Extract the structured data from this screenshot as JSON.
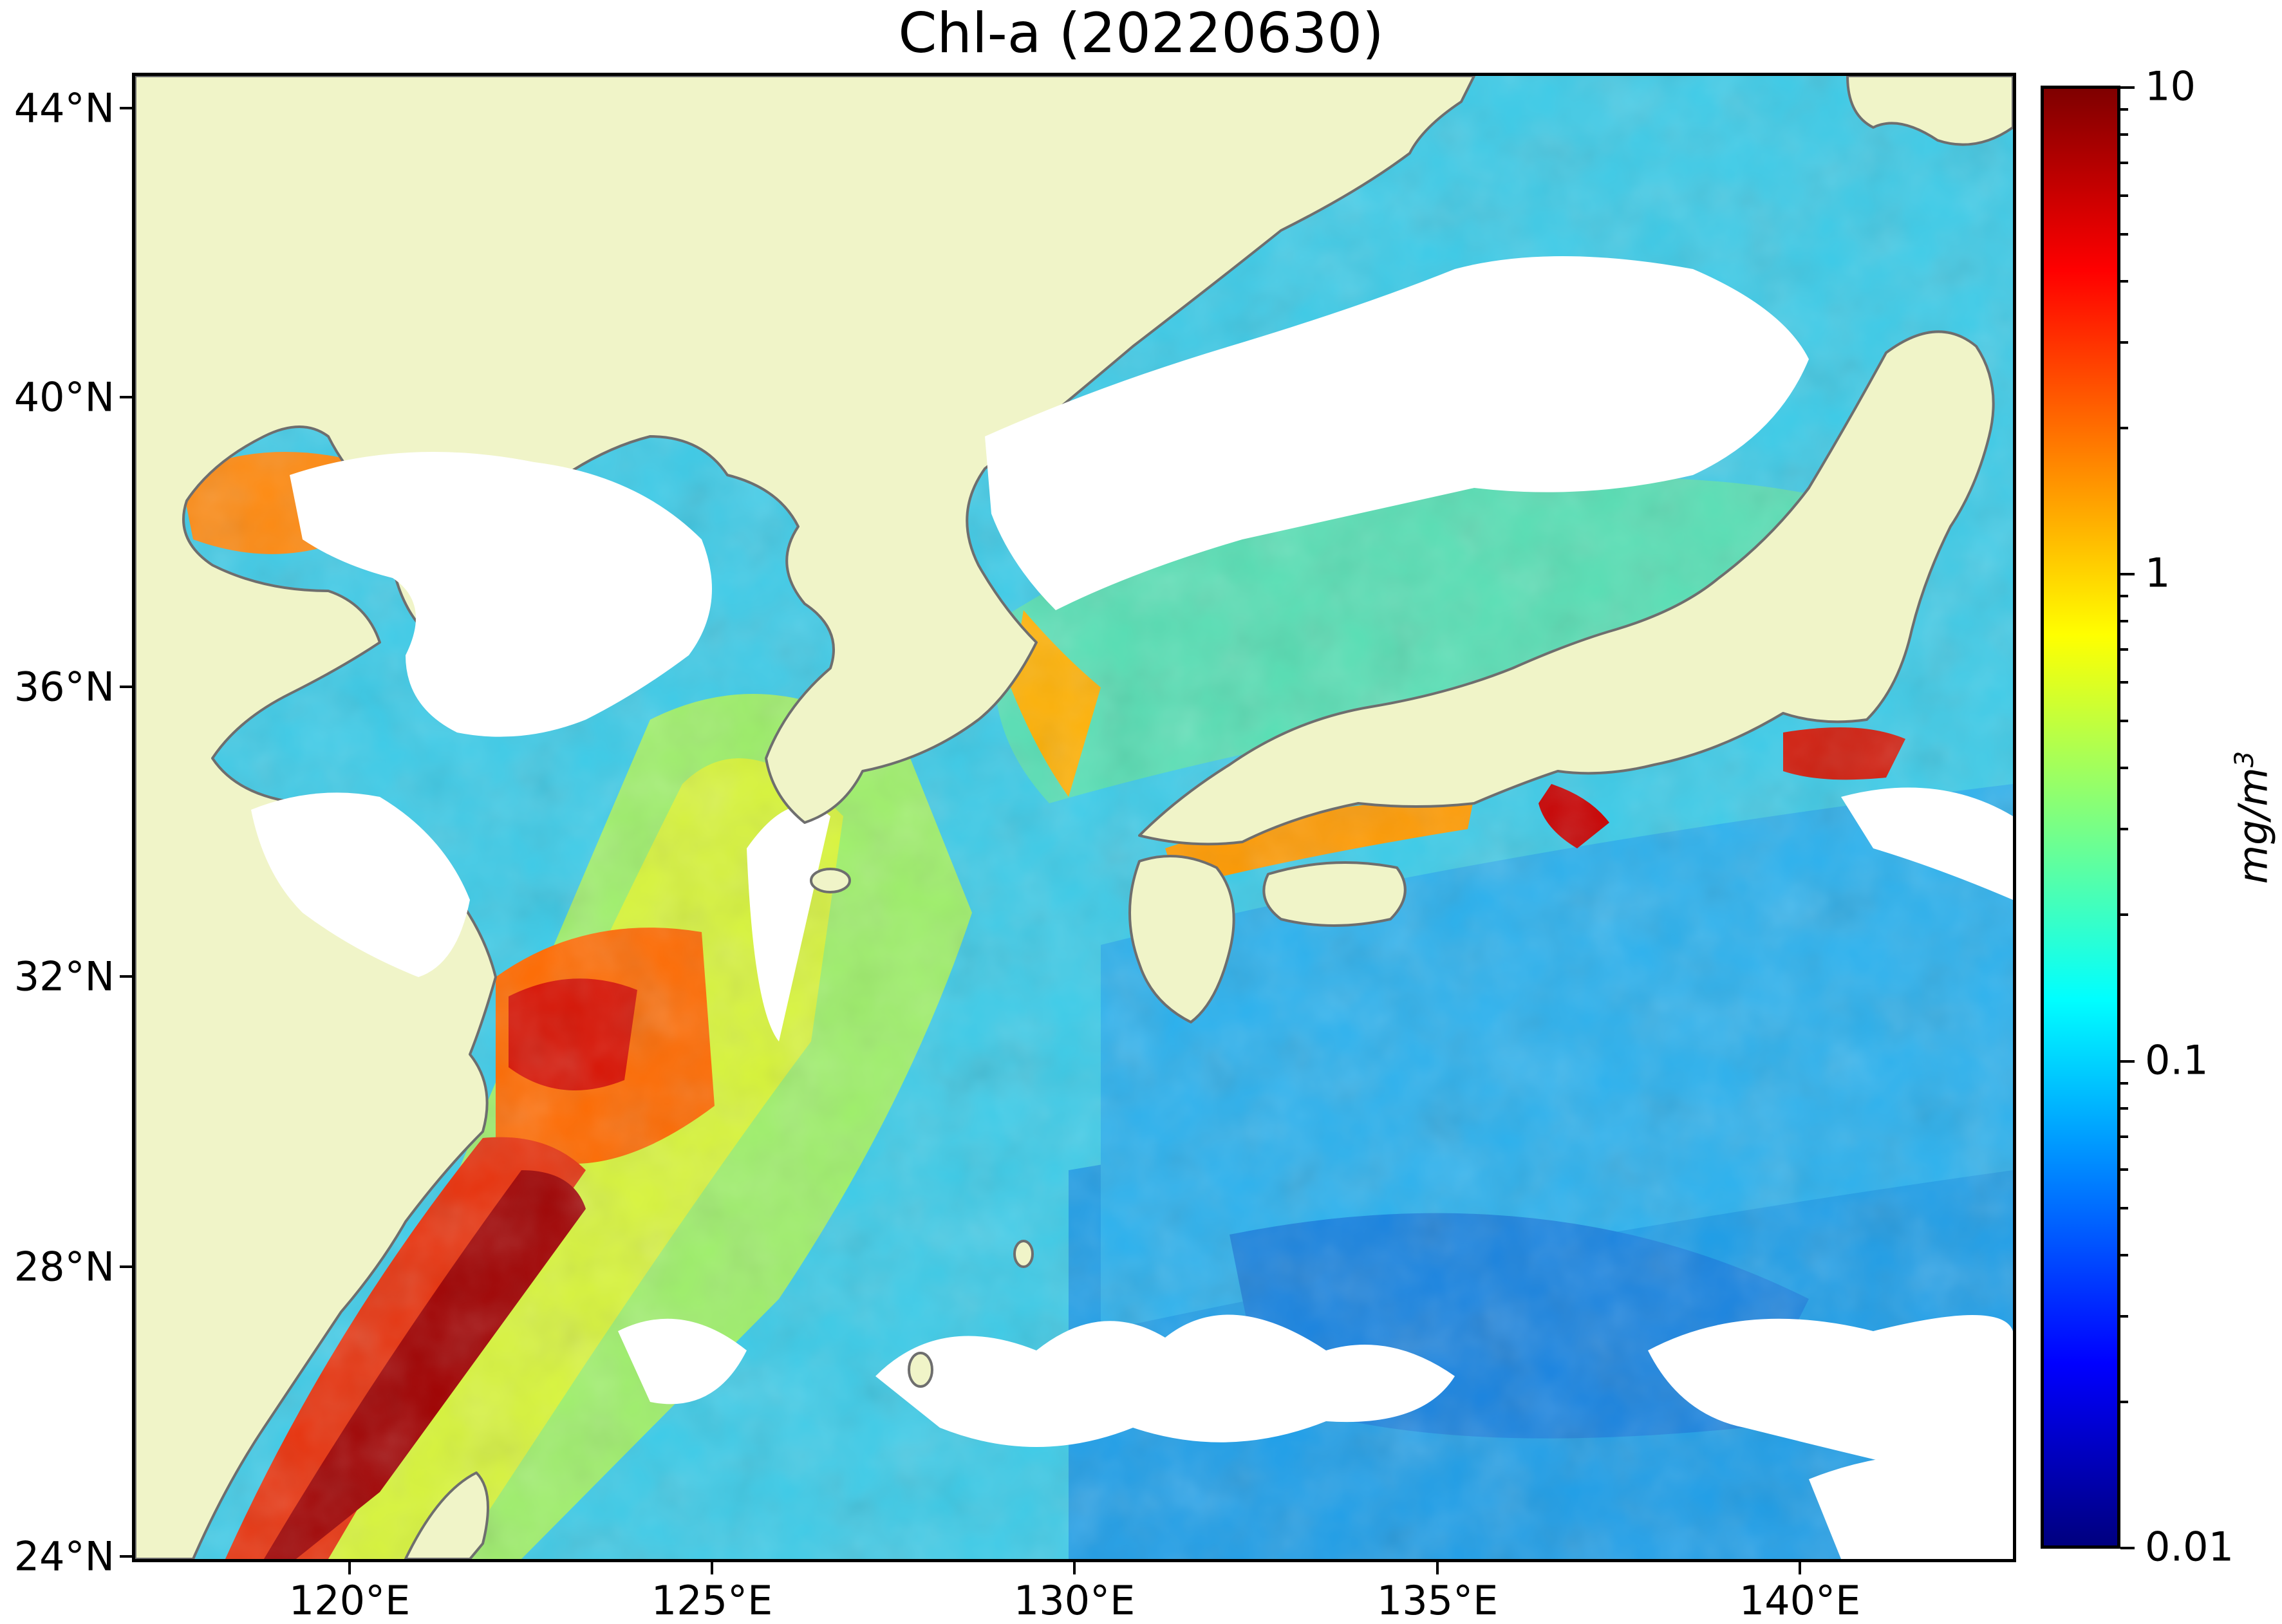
{
  "title": "Chl-a (20220630)",
  "map": {
    "lat_ticks": [
      "44°N",
      "40°N",
      "36°N",
      "32°N",
      "28°N",
      "24°N"
    ],
    "lon_ticks": [
      "120°E",
      "125°E",
      "130°E",
      "135°E",
      "140°E"
    ],
    "extent": {
      "lon": [
        117,
        143
      ],
      "lat": [
        24,
        44.5
      ]
    },
    "colors": {
      "land": "#f0f4c8",
      "coastline": "#6e6e6e",
      "no_data": "#ffffff"
    }
  },
  "colorbar": {
    "scale": "log",
    "range": [
      0.01,
      10
    ],
    "ticks": [
      "10",
      "1",
      "0.1",
      "0.01"
    ],
    "unit_base": "mg/m",
    "unit_exp": "3",
    "colormap": "jet"
  }
}
